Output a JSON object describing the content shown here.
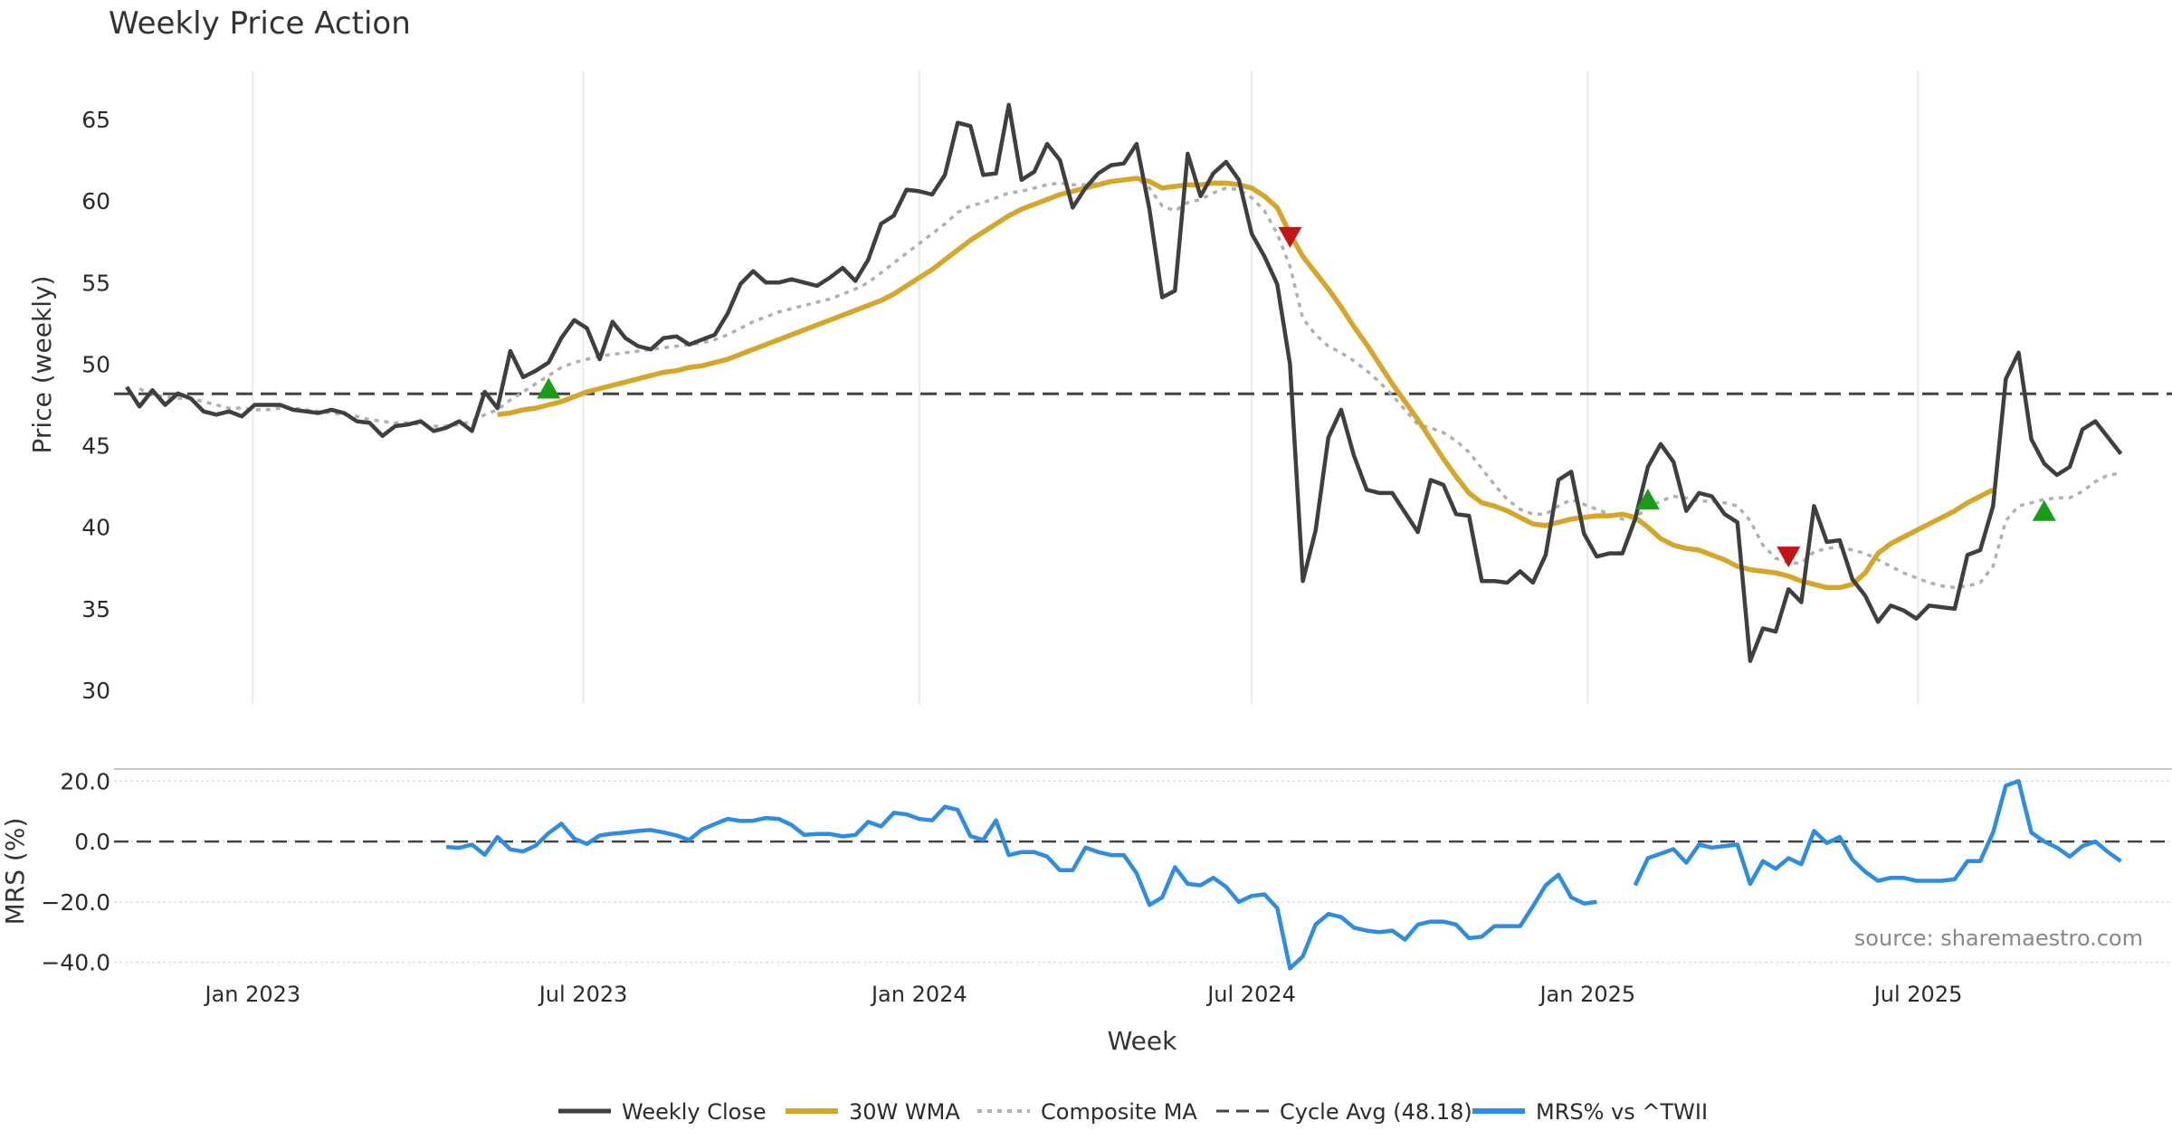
{
  "chart_data": {
    "type": "line",
    "title": "Weekly Price Action",
    "source": "source: sharemaestro.com",
    "xlabel": "Week",
    "x_ticks": [
      "Jan 2023",
      "Jul 2023",
      "Jan 2024",
      "Jul 2024",
      "Jan 2025",
      "Jul 2025"
    ],
    "x_start": "2022-10-24",
    "x_range": [
      "2022-10-17",
      "2025-11-17"
    ],
    "colors": {
      "weekly_close": "#3f3f3f",
      "wma30": "#d4a62a",
      "composite_ma": "#b0b0b0",
      "cycle_avg": "#444444",
      "mrs": "#2e8de0",
      "buy_signal": "#1a9c1a",
      "sell_signal": "#c41414"
    },
    "price_panel": {
      "ylabel": "Price (weekly)",
      "ylim": [
        29.5,
        68
      ],
      "yticks": [
        30,
        35,
        40,
        45,
        50,
        55,
        60,
        65
      ],
      "cycle_avg": 48.18,
      "weekly_close": [
        48.6,
        47.4,
        48.4,
        47.5,
        48.2,
        47.9,
        47.1,
        46.9,
        47.1,
        46.8,
        47.5,
        47.5,
        47.5,
        47.2,
        47.1,
        47.0,
        47.2,
        47.0,
        46.5,
        46.4,
        45.6,
        46.2,
        46.3,
        46.5,
        45.9,
        46.1,
        46.5,
        45.9,
        48.3,
        47.3,
        50.8,
        49.2,
        49.6,
        50.1,
        51.6,
        52.7,
        52.2,
        50.3,
        52.6,
        51.6,
        51.1,
        50.9,
        51.6,
        51.7,
        51.2,
        51.5,
        51.8,
        53.1,
        54.9,
        55.7,
        55.0,
        55.0,
        55.2,
        55.0,
        54.8,
        55.3,
        55.9,
        55.1,
        56.4,
        58.6,
        59.1,
        60.7,
        60.6,
        60.4,
        61.6,
        64.8,
        64.6,
        61.6,
        61.7,
        65.9,
        61.3,
        61.8,
        63.5,
        62.5,
        59.6,
        60.8,
        61.7,
        62.2,
        62.3,
        63.5,
        59.5,
        54.1,
        54.5,
        62.9,
        60.3,
        61.7,
        62.4,
        61.3,
        58.0,
        56.6,
        54.9,
        50.0,
        36.7,
        39.8,
        45.5,
        47.2,
        44.4,
        42.3,
        42.1,
        42.1,
        40.9,
        39.7,
        42.9,
        42.6,
        40.8,
        40.7,
        36.7,
        36.7,
        36.6,
        37.3,
        36.6,
        38.3,
        42.9,
        43.4,
        39.6,
        38.2,
        38.4,
        38.4,
        40.5,
        43.7,
        45.1,
        44.0,
        41.0,
        42.1,
        41.9,
        40.8,
        40.3,
        31.8,
        33.8,
        33.6,
        36.2,
        35.4,
        41.3,
        39.1,
        39.2,
        36.8,
        35.8,
        34.2,
        35.2,
        34.9,
        34.4,
        35.2,
        35.1,
        35.0,
        38.3,
        38.6,
        41.3,
        49.1,
        50.7,
        45.4,
        43.9,
        43.2,
        43.7,
        46.0,
        46.5,
        45.5,
        44.5
      ],
      "wma30": [
        null,
        null,
        null,
        null,
        null,
        null,
        null,
        null,
        null,
        null,
        null,
        null,
        null,
        null,
        null,
        null,
        null,
        null,
        null,
        null,
        null,
        null,
        null,
        null,
        null,
        null,
        null,
        null,
        null,
        46.9,
        47.0,
        47.2,
        47.3,
        47.5,
        47.7,
        48.0,
        48.3,
        48.5,
        48.7,
        48.9,
        49.1,
        49.3,
        49.5,
        49.6,
        49.8,
        49.9,
        50.1,
        50.3,
        50.6,
        50.9,
        51.2,
        51.5,
        51.8,
        52.1,
        52.4,
        52.7,
        53.0,
        53.3,
        53.6,
        53.9,
        54.3,
        54.8,
        55.3,
        55.8,
        56.4,
        57.0,
        57.6,
        58.1,
        58.6,
        59.1,
        59.5,
        59.8,
        60.1,
        60.4,
        60.6,
        60.8,
        61.0,
        61.2,
        61.3,
        61.4,
        61.2,
        60.8,
        60.9,
        61.0,
        61.0,
        61.1,
        61.1,
        61.0,
        60.8,
        60.3,
        59.6,
        58.0,
        56.6,
        55.6,
        54.6,
        53.5,
        52.3,
        51.2,
        50.0,
        48.8,
        47.7,
        46.6,
        45.4,
        44.2,
        43.1,
        42.1,
        41.5,
        41.3,
        41.0,
        40.6,
        40.2,
        40.1,
        40.3,
        40.5,
        40.6,
        40.7,
        40.7,
        40.8,
        40.6,
        40.0,
        39.3,
        38.9,
        38.7,
        38.6,
        38.3,
        38.0,
        37.6,
        37.4,
        37.3,
        37.2,
        37.0,
        36.7,
        36.5,
        36.3,
        36.3,
        36.5,
        37.2,
        38.4,
        39.0,
        39.4,
        39.8,
        40.2,
        40.6,
        41.0,
        41.5,
        41.9,
        42.3
      ],
      "composite_ma": [
        null,
        48.5,
        48.1,
        48.0,
        47.9,
        47.9,
        47.7,
        47.5,
        47.3,
        47.3,
        47.2,
        47.2,
        47.3,
        47.3,
        47.2,
        47.1,
        47.0,
        46.9,
        46.8,
        46.6,
        46.5,
        46.4,
        46.4,
        46.3,
        46.2,
        46.2,
        46.3,
        46.5,
        46.9,
        47.2,
        47.8,
        48.3,
        48.8,
        49.3,
        49.8,
        50.1,
        50.3,
        50.5,
        50.6,
        50.7,
        50.8,
        50.9,
        51.0,
        51.1,
        51.2,
        51.3,
        51.5,
        51.8,
        52.2,
        52.6,
        52.9,
        53.2,
        53.4,
        53.6,
        53.8,
        54.0,
        54.3,
        54.6,
        55.0,
        55.6,
        56.2,
        56.8,
        57.4,
        58.0,
        58.6,
        59.3,
        59.7,
        59.9,
        60.2,
        60.5,
        60.6,
        60.8,
        61.0,
        61.1,
        61.0,
        61.0,
        61.1,
        61.2,
        61.3,
        61.4,
        60.8,
        59.7,
        59.4,
        59.9,
        60.1,
        60.5,
        60.8,
        60.7,
        60.2,
        59.4,
        58.0,
        56.0,
        52.8,
        51.8,
        51.1,
        50.7,
        50.2,
        49.6,
        48.9,
        48.1,
        47.2,
        46.3,
        46.1,
        45.8,
        45.3,
        44.6,
        43.6,
        42.6,
        41.7,
        41.1,
        40.8,
        40.8,
        41.3,
        41.7,
        41.4,
        41.1,
        40.8,
        40.5,
        40.6,
        41.2,
        41.6,
        41.9,
        41.8,
        41.6,
        41.6,
        41.5,
        41.3,
        40.4,
        38.9,
        38.1,
        37.8,
        37.8,
        38.5,
        38.7,
        38.8,
        38.6,
        38.4,
        38.0,
        37.6,
        37.2,
        36.9,
        36.6,
        36.4,
        36.3,
        36.4,
        36.6,
        37.6,
        40.4,
        41.3,
        41.5,
        41.7,
        41.8,
        41.8,
        42.2,
        42.8,
        43.2,
        43.3
      ],
      "signals": [
        {
          "type": "buy",
          "index": 33,
          "value": 48.5
        },
        {
          "type": "sell",
          "index": 91,
          "value": 57.8
        },
        {
          "type": "buy",
          "index": 119,
          "value": 41.7
        },
        {
          "type": "sell",
          "index": 130,
          "value": 38.2
        },
        {
          "type": "buy",
          "index": 150,
          "value": 41.0
        }
      ]
    },
    "mrs_panel": {
      "ylabel": "MRS (%)",
      "ylim": [
        -42.5,
        22.5
      ],
      "yticks": [
        20.0,
        0.0,
        -20.0,
        -40.0
      ],
      "ytick_labels": [
        "20.0",
        "0.0",
        "−20.0",
        "−40.0"
      ],
      "zero_line": 0.0,
      "mrs": [
        null,
        null,
        null,
        null,
        null,
        null,
        null,
        null,
        null,
        null,
        null,
        null,
        null,
        null,
        null,
        null,
        null,
        null,
        null,
        null,
        null,
        null,
        null,
        null,
        null,
        -1.8,
        -2.1,
        -1.0,
        -4.4,
        1.5,
        -2.6,
        -3.3,
        -1.3,
        2.8,
        5.9,
        1.0,
        -0.8,
        2.0,
        2.6,
        3.0,
        3.5,
        3.8,
        3.0,
        2.0,
        0.5,
        4.0,
        5.8,
        7.5,
        6.8,
        6.9,
        7.8,
        7.5,
        5.5,
        2.2,
        2.5,
        2.5,
        1.7,
        2.2,
        6.5,
        5.0,
        9.5,
        9.0,
        7.5,
        7.0,
        11.5,
        10.5,
        1.8,
        0.5,
        7.0,
        -4.5,
        -3.5,
        -3.5,
        -5.0,
        -9.5,
        -9.5,
        -2.0,
        -3.5,
        -4.5,
        -4.5,
        -10.5,
        -21.0,
        -18.5,
        -8.5,
        -14.0,
        -14.5,
        -12.0,
        -15.0,
        -20.0,
        -18.0,
        -17.5,
        -22.0,
        -42.0,
        -38.0,
        -27.5,
        -24.0,
        -25.0,
        -28.5,
        -29.5,
        -30.0,
        -29.5,
        -32.5,
        -27.5,
        -26.5,
        -26.5,
        -27.5,
        -32.0,
        -31.5,
        -28.0,
        -28.0,
        -28.0,
        -21.5,
        -14.5,
        -11.0,
        -18.5,
        -20.5,
        -20.0,
        null,
        null,
        -14.5,
        -5.5,
        -4.0,
        -2.5,
        -7.0,
        -1.0,
        -2.0,
        -1.5,
        -1.0,
        -14.0,
        -6.5,
        -9.0,
        -5.5,
        -7.5,
        3.5,
        -0.5,
        1.5,
        -6.0,
        -10.0,
        -13.0,
        -12.0,
        -12.0,
        -13.0,
        -13.0,
        -13.0,
        -12.5,
        -6.5,
        -6.5,
        3.0,
        18.5,
        20.0,
        3.0,
        0.0,
        -2.0,
        -5.0,
        -1.5,
        0.0,
        -3.5,
        -6.5
      ]
    },
    "legend": [
      "Weekly Close",
      "30W WMA",
      "Composite MA",
      "Cycle Avg (48.18)",
      "MRS% vs ^TWII"
    ]
  }
}
